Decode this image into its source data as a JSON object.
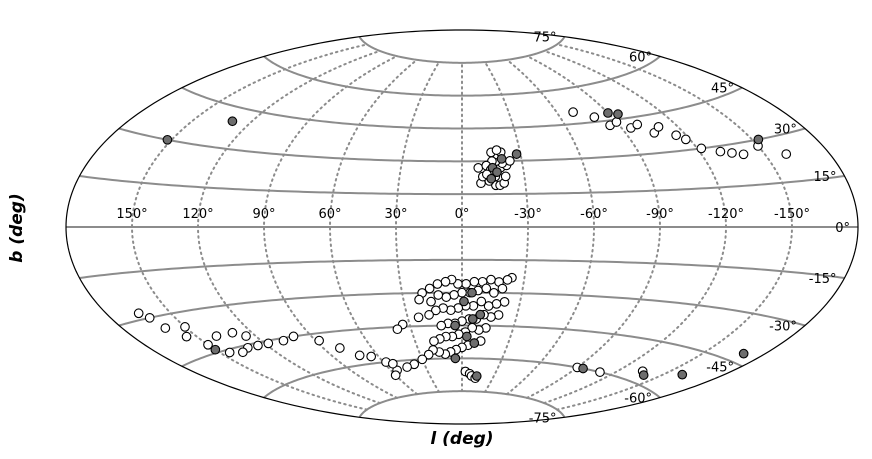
{
  "chart_data": {
    "type": "scatter",
    "projection": "aitoff",
    "title": "",
    "xlabel": "l (deg)",
    "ylabel": "b (deg)",
    "grid": true,
    "xlim": [
      -180,
      180
    ],
    "ylim": [
      -90,
      90
    ],
    "colors": {
      "parallel": "#8c8c8c",
      "meridian": "#8c8c8c",
      "open_marker_fill": "#ffffff",
      "filled_marker_fill": "#6e6e6e",
      "marker_edge": "#000000"
    },
    "x_ticks": [
      {
        "value": 150,
        "label": "150°"
      },
      {
        "value": 120,
        "label": "120°"
      },
      {
        "value": 90,
        "label": "90°"
      },
      {
        "value": 60,
        "label": "60°"
      },
      {
        "value": 30,
        "label": "30°"
      },
      {
        "value": 0,
        "label": "0°"
      },
      {
        "value": -30,
        "label": "-30°"
      },
      {
        "value": -60,
        "label": "-60°"
      },
      {
        "value": -90,
        "label": "-90°"
      },
      {
        "value": -120,
        "label": "-120°"
      },
      {
        "value": -150,
        "label": "-150°"
      }
    ],
    "y_ticks": [
      {
        "value": 75,
        "label": "75°"
      },
      {
        "value": 60,
        "label": "60°"
      },
      {
        "value": 45,
        "label": "45°"
      },
      {
        "value": 30,
        "label": "30°"
      },
      {
        "value": 15,
        "label": "15°"
      },
      {
        "value": 0,
        "label": "0°"
      },
      {
        "value": -15,
        "label": "-15°"
      },
      {
        "value": -30,
        "label": "-30°"
      },
      {
        "value": -45,
        "label": "-45°"
      },
      {
        "value": -60,
        "label": "-60°"
      },
      {
        "value": -75,
        "label": "-75°"
      }
    ],
    "series": [
      {
        "marker": "open",
        "points": [
          [
            -16,
            19
          ],
          [
            -13,
            21
          ],
          [
            -18,
            19
          ],
          [
            -20,
            20
          ],
          [
            -16,
            23
          ],
          [
            -21,
            23
          ],
          [
            -17,
            25
          ],
          [
            -19,
            27
          ],
          [
            -22,
            28
          ],
          [
            -20,
            29
          ],
          [
            -17,
            30
          ],
          [
            -15,
            30
          ],
          [
            -18,
            33
          ],
          [
            -15,
            34
          ],
          [
            -20,
            34
          ],
          [
            -18,
            35
          ],
          [
            -24,
            30
          ],
          [
            -9,
            20
          ],
          [
            -10,
            23
          ],
          [
            -14,
            23
          ],
          [
            -8,
            27
          ],
          [
            -12,
            28
          ],
          [
            -14,
            26
          ],
          [
            -12,
            24
          ],
          [
            -70,
            50
          ],
          [
            -80,
            47
          ],
          [
            -85,
            43
          ],
          [
            -90,
            44
          ],
          [
            -95,
            41
          ],
          [
            -100,
            42
          ],
          [
            -105,
            38
          ],
          [
            -110,
            40
          ],
          [
            -115,
            36
          ],
          [
            -118,
            34
          ],
          [
            -122,
            30
          ],
          [
            -130,
            28
          ],
          [
            -135,
            27
          ],
          [
            -140,
            26
          ],
          [
            -150,
            28
          ],
          [
            -160,
            24
          ],
          [
            -24,
            -23
          ],
          [
            -22,
            -24
          ],
          [
            -18,
            -25
          ],
          [
            -14,
            -24
          ],
          [
            -10,
            -25
          ],
          [
            -6,
            -25
          ],
          [
            -2,
            -26
          ],
          [
            2,
            -26
          ],
          [
            5,
            -24
          ],
          [
            8,
            -25
          ],
          [
            12,
            -26
          ],
          [
            16,
            -28
          ],
          [
            20,
            -30
          ],
          [
            -20,
            -28
          ],
          [
            -16,
            -30
          ],
          [
            -12,
            -28
          ],
          [
            -8,
            -29
          ],
          [
            -4,
            -30
          ],
          [
            0,
            -30
          ],
          [
            4,
            -31
          ],
          [
            8,
            -32
          ],
          [
            12,
            -31
          ],
          [
            16,
            -34
          ],
          [
            22,
            -33
          ],
          [
            -22,
            -34
          ],
          [
            -18,
            -35
          ],
          [
            -14,
            -36
          ],
          [
            -10,
            -34
          ],
          [
            -6,
            -36
          ],
          [
            -2,
            -36
          ],
          [
            2,
            -37
          ],
          [
            6,
            -38
          ],
          [
            10,
            -37
          ],
          [
            14,
            -38
          ],
          [
            18,
            -40
          ],
          [
            24,
            -41
          ],
          [
            -20,
            -40
          ],
          [
            -16,
            -41
          ],
          [
            -12,
            -40
          ],
          [
            -8,
            -42
          ],
          [
            -4,
            -42
          ],
          [
            0,
            -43
          ],
          [
            4,
            -44
          ],
          [
            8,
            -44
          ],
          [
            12,
            -45
          ],
          [
            -14,
            -46
          ],
          [
            -10,
            -47
          ],
          [
            -6,
            -46
          ],
          [
            -2,
            -48
          ],
          [
            2,
            -49
          ],
          [
            6,
            -50
          ],
          [
            10,
            -50
          ],
          [
            -12,
            -52
          ],
          [
            -8,
            -53
          ],
          [
            -4,
            -54
          ],
          [
            0,
            -55
          ],
          [
            4,
            -56
          ],
          [
            8,
            -57
          ],
          [
            12,
            -58
          ],
          [
            16,
            -57
          ],
          [
            20,
            -56
          ],
          [
            24,
            -58
          ],
          [
            30,
            -60
          ],
          [
            38,
            -62
          ],
          [
            45,
            -63
          ],
          [
            55,
            -64
          ],
          [
            60,
            -66
          ],
          [
            -3,
            -66
          ],
          [
            -7,
            -67
          ],
          [
            -9,
            -68
          ],
          [
            -13,
            -69
          ],
          [
            14,
            -51
          ],
          [
            18,
            -52
          ],
          [
            34,
            -44
          ],
          [
            38,
            -46
          ],
          [
            100,
            -45
          ],
          [
            108,
            -46
          ],
          [
            118,
            -46
          ],
          [
            125,
            -46
          ],
          [
            132,
            -46
          ],
          [
            138,
            -47
          ],
          [
            145,
            -46
          ],
          [
            150,
            -42
          ],
          [
            155,
            -38
          ],
          [
            160,
            -34
          ],
          [
            162,
            -30
          ],
          [
            165,
            -28
          ],
          [
            140,
            -40
          ],
          [
            130,
            -40
          ],
          [
            125,
            -42
          ],
          [
            150,
            -35
          ],
          [
            88,
            -48
          ],
          [
            80,
            -52
          ],
          [
            72,
            -56
          ],
          [
            58,
            -60
          ],
          [
            54,
            -61
          ],
          [
            65,
            -57
          ],
          [
            -135,
            -56
          ],
          [
            -110,
            -60
          ],
          [
            -90,
            -60
          ]
        ]
      },
      {
        "marker": "filled",
        "points": [
          [
            -20,
            31
          ],
          [
            -15,
            27
          ],
          [
            -17,
            25
          ],
          [
            -14,
            22
          ],
          [
            -28,
            33
          ],
          [
            -90,
            48
          ],
          [
            -95,
            47
          ],
          [
            -153,
            30
          ],
          [
            130,
            40
          ],
          [
            152,
            30
          ],
          [
            -5,
            -30
          ],
          [
            -1,
            -34
          ],
          [
            -10,
            -40
          ],
          [
            -6,
            -42
          ],
          [
            4,
            -45
          ],
          [
            -3,
            -50
          ],
          [
            -8,
            -53
          ],
          [
            5,
            -60
          ],
          [
            -14,
            -68
          ],
          [
            -95,
            -60
          ],
          [
            -140,
            -57
          ],
          [
            -160,
            -53
          ],
          [
            -170,
            -42
          ],
          [
            150,
            -44
          ]
        ]
      }
    ]
  }
}
